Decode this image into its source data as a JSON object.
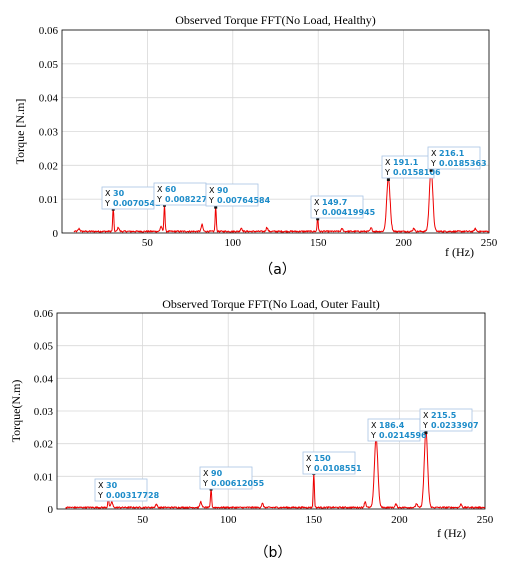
{
  "chart_data": [
    {
      "type": "line",
      "title": "Observed Torque FFT(No Load, Healthy)",
      "xlabel": "f (Hz)",
      "ylabel": "Torque [N.m]",
      "xlim": [
        0,
        250
      ],
      "ylim": [
        0,
        0.06
      ],
      "xticks": [
        "50",
        "100",
        "150",
        "200",
        "250"
      ],
      "yticks": [
        "0",
        "0.01",
        "0.02",
        "0.03",
        "0.04",
        "0.05",
        "0.06"
      ],
      "grid": true,
      "caption": "（a）",
      "peaks": [
        {
          "x": 30,
          "y": 0.00705414,
          "xl": "30",
          "yl": "0.00705414"
        },
        {
          "x": 60,
          "y": 0.00822757,
          "xl": "60",
          "yl": "0.00822757"
        },
        {
          "x": 90,
          "y": 0.00764584,
          "xl": "90",
          "yl": "0.00764584"
        },
        {
          "x": 149.7,
          "y": 0.00419945,
          "xl": "149.7",
          "yl": "0.00419945"
        },
        {
          "x": 191.1,
          "y": 0.0158106,
          "xl": "191.1",
          "yl": "0.0158106"
        },
        {
          "x": 216.1,
          "y": 0.0185363,
          "xl": "216.1",
          "yl": "0.0185363"
        }
      ],
      "color": "#ee0000"
    },
    {
      "type": "line",
      "title": "Observed Torque FFT(No Load, Outer Fault)",
      "xlabel": "f (Hz)",
      "ylabel": "Torque(N.m)",
      "xlim": [
        0,
        250
      ],
      "ylim": [
        0,
        0.06
      ],
      "xticks": [
        "50",
        "100",
        "150",
        "200",
        "250"
      ],
      "yticks": [
        "0",
        "0.01",
        "0.02",
        "0.03",
        "0.04",
        "0.05",
        "0.06"
      ],
      "grid": true,
      "caption": "（b）",
      "peaks": [
        {
          "x": 30,
          "y": 0.00317728,
          "xl": "30",
          "yl": "0.00317728"
        },
        {
          "x": 90,
          "y": 0.00612055,
          "xl": "90",
          "yl": "0.00612055"
        },
        {
          "x": 150,
          "y": 0.0108551,
          "xl": "150",
          "yl": "0.0108551"
        },
        {
          "x": 186.4,
          "y": 0.0214596,
          "xl": "186.4",
          "yl": "0.0214596"
        },
        {
          "x": 215.5,
          "y": 0.0233907,
          "xl": "215.5",
          "yl": "0.0233907"
        }
      ],
      "color": "#ee0000"
    }
  ],
  "tip": {
    "x_key": "X",
    "y_key": "Y"
  }
}
